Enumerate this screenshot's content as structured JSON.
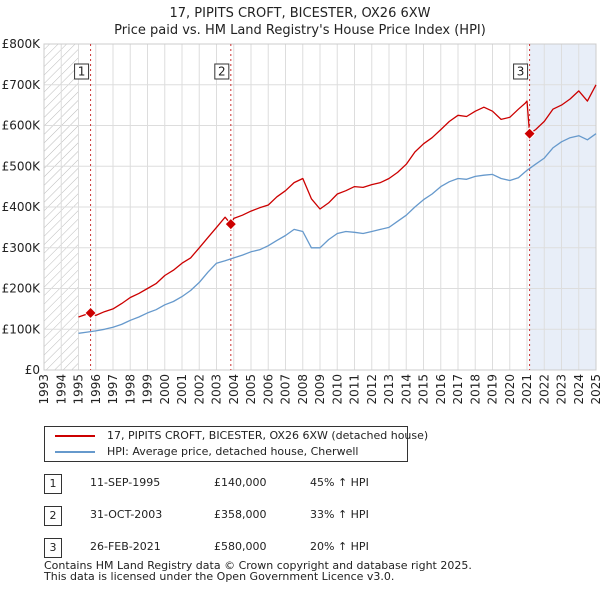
{
  "chart_data": {
    "type": "line",
    "title": "17, PIPITS CROFT, BICESTER, OX26 6XW",
    "subtitle": "Price paid vs. HM Land Registry's House Price Index (HPI)",
    "xlabel": "",
    "ylabel": "",
    "xlim": [
      1993,
      2025
    ],
    "ylim": [
      0,
      800000
    ],
    "grid": true,
    "x_ticks": [
      1993,
      1994,
      1995,
      1996,
      1997,
      1998,
      1999,
      2000,
      2001,
      2002,
      2003,
      2004,
      2005,
      2006,
      2007,
      2008,
      2009,
      2010,
      2011,
      2012,
      2013,
      2014,
      2015,
      2016,
      2017,
      2018,
      2019,
      2020,
      2021,
      2022,
      2023,
      2024,
      2025
    ],
    "y_ticks": [
      {
        "value": 0,
        "label": "£0"
      },
      {
        "value": 100000,
        "label": "£100K"
      },
      {
        "value": 200000,
        "label": "£200K"
      },
      {
        "value": 300000,
        "label": "£300K"
      },
      {
        "value": 400000,
        "label": "£400K"
      },
      {
        "value": 500000,
        "label": "£500K"
      },
      {
        "value": 600000,
        "label": "£600K"
      },
      {
        "value": 700000,
        "label": "£700K"
      },
      {
        "value": 800000,
        "label": "£800K"
      }
    ],
    "hatched_before": 1995.0,
    "highlight_from": 2021.15,
    "series": [
      {
        "name": "17, PIPITS CROFT, BICESTER, OX26 6XW (detached house)",
        "color": "#cc0000",
        "x": [
          1995.0,
          1995.4,
          1995.7,
          1996.0,
          1996.5,
          1997.0,
          1997.5,
          1998.0,
          1998.5,
          1999.0,
          1999.5,
          2000.0,
          2000.5,
          2001.0,
          2001.5,
          2002.0,
          2002.5,
          2003.0,
          2003.5,
          2003.83,
          2004.0,
          2004.5,
          2005.0,
          2005.5,
          2006.0,
          2006.5,
          2007.0,
          2007.5,
          2008.0,
          2008.5,
          2009.0,
          2009.5,
          2010.0,
          2010.5,
          2011.0,
          2011.5,
          2012.0,
          2012.5,
          2013.0,
          2013.5,
          2014.0,
          2014.5,
          2015.0,
          2015.5,
          2016.0,
          2016.5,
          2017.0,
          2017.5,
          2018.0,
          2018.5,
          2019.0,
          2019.5,
          2020.0,
          2020.5,
          2020.9,
          2021.0,
          2021.15,
          2021.5,
          2022.0,
          2022.5,
          2023.0,
          2023.5,
          2024.0,
          2024.5,
          2025.0
        ],
        "values": [
          130000,
          136000,
          140000,
          134000,
          143000,
          150000,
          163000,
          178000,
          188000,
          200000,
          212000,
          232000,
          245000,
          262000,
          275000,
          300000,
          325000,
          350000,
          375000,
          358000,
          372000,
          380000,
          390000,
          398000,
          405000,
          425000,
          440000,
          460000,
          470000,
          420000,
          395000,
          410000,
          432000,
          440000,
          450000,
          448000,
          455000,
          460000,
          470000,
          485000,
          505000,
          535000,
          555000,
          570000,
          590000,
          610000,
          625000,
          622000,
          635000,
          645000,
          635000,
          615000,
          620000,
          640000,
          655000,
          660000,
          580000,
          590000,
          610000,
          640000,
          650000,
          665000,
          685000,
          660000,
          700000
        ]
      },
      {
        "name": "HPI: Average price, detached house, Cherwell",
        "color": "#6699cc",
        "x": [
          1995.0,
          1995.5,
          1996.0,
          1996.5,
          1997.0,
          1997.5,
          1998.0,
          1998.5,
          1999.0,
          1999.5,
          2000.0,
          2000.5,
          2001.0,
          2001.5,
          2002.0,
          2002.5,
          2003.0,
          2003.5,
          2004.0,
          2004.5,
          2005.0,
          2005.5,
          2006.0,
          2006.5,
          2007.0,
          2007.5,
          2008.0,
          2008.5,
          2009.0,
          2009.5,
          2010.0,
          2010.5,
          2011.0,
          2011.5,
          2012.0,
          2012.5,
          2013.0,
          2013.5,
          2014.0,
          2014.5,
          2015.0,
          2015.5,
          2016.0,
          2016.5,
          2017.0,
          2017.5,
          2018.0,
          2018.5,
          2019.0,
          2019.5,
          2020.0,
          2020.5,
          2021.0,
          2021.5,
          2022.0,
          2022.5,
          2023.0,
          2023.5,
          2024.0,
          2024.5,
          2025.0
        ],
        "values": [
          90000,
          93000,
          96000,
          100000,
          105000,
          112000,
          122000,
          130000,
          140000,
          148000,
          160000,
          168000,
          180000,
          195000,
          215000,
          240000,
          262000,
          268000,
          275000,
          282000,
          290000,
          295000,
          305000,
          318000,
          330000,
          345000,
          340000,
          300000,
          300000,
          320000,
          335000,
          340000,
          338000,
          335000,
          340000,
          345000,
          350000,
          365000,
          380000,
          400000,
          418000,
          432000,
          450000,
          462000,
          470000,
          468000,
          475000,
          478000,
          480000,
          470000,
          465000,
          472000,
          490000,
          505000,
          520000,
          545000,
          560000,
          570000,
          575000,
          565000,
          580000
        ]
      }
    ],
    "markers": [
      {
        "label": "1",
        "x": 1995.7,
        "y": 140000
      },
      {
        "label": "2",
        "x": 2003.83,
        "y": 358000
      },
      {
        "label": "3",
        "x": 2021.15,
        "y": 580000
      }
    ]
  },
  "legend": {
    "property_label": "17, PIPITS CROFT, BICESTER, OX26 6XW (detached house)",
    "hpi_label": "HPI: Average price, detached house, Cherwell",
    "property_color": "#cc0000",
    "hpi_color": "#6699cc"
  },
  "sales": [
    {
      "num": "1",
      "date": "11-SEP-1995",
      "price": "£140,000",
      "hpi": "45% ↑ HPI"
    },
    {
      "num": "2",
      "date": "31-OCT-2003",
      "price": "£358,000",
      "hpi": "33% ↑ HPI"
    },
    {
      "num": "3",
      "date": "26-FEB-2021",
      "price": "£580,000",
      "hpi": "20% ↑ HPI"
    }
  ],
  "footer": {
    "line1": "Contains HM Land Registry data © Crown copyright and database right 2025.",
    "line2": "This data is licensed under the Open Government Licence v3.0."
  }
}
